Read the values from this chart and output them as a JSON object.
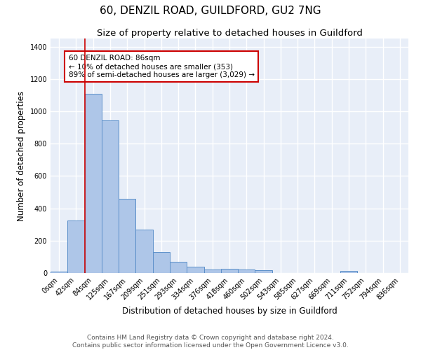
{
  "title": "60, DENZIL ROAD, GUILDFORD, GU2 7NG",
  "subtitle": "Size of property relative to detached houses in Guildford",
  "xlabel": "Distribution of detached houses by size in Guildford",
  "ylabel": "Number of detached properties",
  "footer_line1": "Contains HM Land Registry data © Crown copyright and database right 2024.",
  "footer_line2": "Contains public sector information licensed under the Open Government Licence v3.0.",
  "bar_labels": [
    "0sqm",
    "42sqm",
    "84sqm",
    "125sqm",
    "167sqm",
    "209sqm",
    "251sqm",
    "293sqm",
    "334sqm",
    "376sqm",
    "418sqm",
    "460sqm",
    "502sqm",
    "543sqm",
    "585sqm",
    "627sqm",
    "669sqm",
    "711sqm",
    "752sqm",
    "794sqm",
    "836sqm"
  ],
  "bar_values": [
    10,
    325,
    1110,
    945,
    460,
    270,
    130,
    68,
    40,
    22,
    25,
    23,
    18,
    2,
    0,
    0,
    0,
    12,
    0,
    0,
    0
  ],
  "bar_color": "#aec6e8",
  "bar_edge_color": "#5b8fc9",
  "background_color": "#e8eef8",
  "grid_color": "#ffffff",
  "ylim": [
    0,
    1450
  ],
  "annotation_text": "60 DENZIL ROAD: 86sqm\n← 10% of detached houses are smaller (353)\n89% of semi-detached houses are larger (3,029) →",
  "vline_x": 1.5,
  "vline_color": "#cc0000",
  "annotation_box_color": "#cc0000",
  "title_fontsize": 11,
  "subtitle_fontsize": 9.5,
  "axis_label_fontsize": 8.5,
  "tick_fontsize": 7,
  "annotation_fontsize": 7.5,
  "footer_fontsize": 6.5
}
